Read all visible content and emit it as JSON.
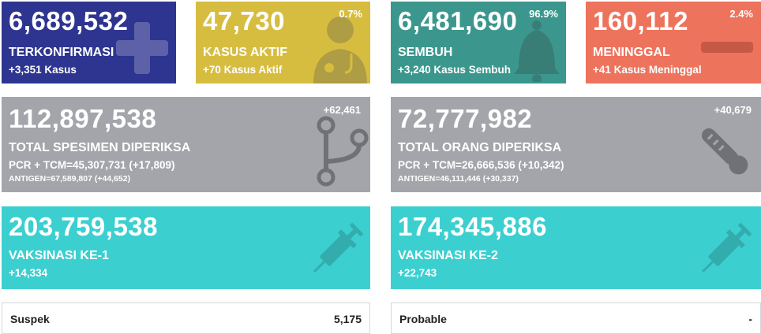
{
  "colors": {
    "confirmed": "#2e3590",
    "active": "#d7bd3f",
    "recovered": "#3b978d",
    "deaths": "#ee735c",
    "tested": "#a3a5aa",
    "vaccine": "#3ccfd0"
  },
  "confirmed": {
    "value": "6,689,532",
    "label": "TERKONFIRMASI",
    "delta": "+3,351 Kasus",
    "icon": "plus-icon"
  },
  "active": {
    "value": "47,730",
    "percent": "0.7%",
    "label": "KASUS AKTIF",
    "delta": "+70 Kasus Aktif",
    "icon": "doctor-icon"
  },
  "recovered": {
    "value": "6,481,690",
    "percent": "96.9%",
    "label": "SEMBUH",
    "delta": "+3,240 Kasus Sembuh",
    "icon": "bell-icon"
  },
  "deaths": {
    "value": "160,112",
    "percent": "2.4%",
    "label": "MENINGGAL",
    "delta": "+41 Kasus Meninggal",
    "icon": "minus-icon"
  },
  "specimens": {
    "value": "112,897,538",
    "delta": "+62,461",
    "label": "TOTAL SPESIMEN DIPERIKSA",
    "pcr": "PCR + TCM=45,307,731 (+17,809)",
    "antigen": "ANTIGEN=67,589,807 (+44,652)",
    "icon": "stethoscope-icon"
  },
  "people": {
    "value": "72,777,982",
    "delta": "+40,679",
    "label": "TOTAL ORANG DIPERIKSA",
    "pcr": "PCR + TCM=26,666,536 (+10,342)",
    "antigen": "ANTIGEN=46,111,446 (+30,337)",
    "icon": "thermometer-icon"
  },
  "vaccine1": {
    "value": "203,759,538",
    "label": "VAKSINASI KE-1",
    "delta": "+14,334",
    "icon": "syringe-icon"
  },
  "vaccine2": {
    "value": "174,345,886",
    "label": "VAKSINASI KE-2",
    "delta": "+22,743",
    "icon": "syringe-icon"
  },
  "suspect": {
    "label": "Suspek",
    "value": "5,175"
  },
  "probable": {
    "label": "Probable",
    "value": "-"
  }
}
